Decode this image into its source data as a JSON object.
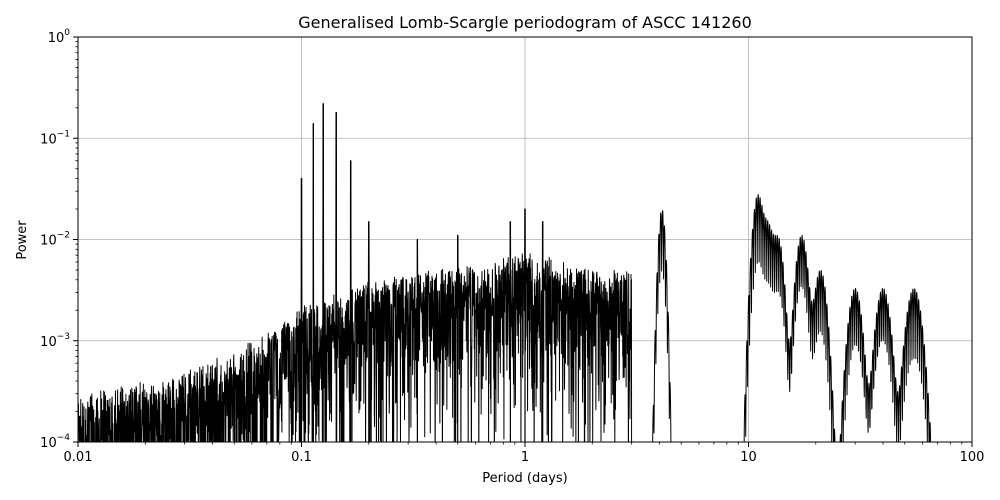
{
  "chart_data": {
    "type": "line",
    "title": "Generalised Lomb-Scargle periodogram of ASCC 141260",
    "xlabel": "Period (days)",
    "ylabel": "Power",
    "xscale": "log",
    "yscale": "log",
    "xlim": [
      0.01,
      100
    ],
    "ylim": [
      0.0001,
      1
    ],
    "grid": true,
    "line_color": "#000000",
    "grid_color": "#b0b0b0",
    "x_ticks": [
      {
        "value": 0.01,
        "label": "0.01"
      },
      {
        "value": 0.1,
        "label": "0.1"
      },
      {
        "value": 1,
        "label": "1"
      },
      {
        "value": 10,
        "label": "10"
      },
      {
        "value": 100,
        "label": "100"
      }
    ],
    "y_ticks": [
      {
        "value": 0.0001,
        "base": "10",
        "exp": "−4"
      },
      {
        "value": 0.001,
        "base": "10",
        "exp": "−3"
      },
      {
        "value": 0.01,
        "base": "10",
        "exp": "−2"
      },
      {
        "value": 0.1,
        "base": "10",
        "exp": "−1"
      },
      {
        "value": 1,
        "base": "10",
        "exp": "0"
      }
    ],
    "peaks": [
      {
        "x": 0.1,
        "y": 0.04
      },
      {
        "x": 0.113,
        "y": 0.14
      },
      {
        "x": 0.125,
        "y": 0.22
      },
      {
        "x": 0.143,
        "y": 0.18
      },
      {
        "x": 0.166,
        "y": 0.06
      },
      {
        "x": 0.2,
        "y": 0.015
      },
      {
        "x": 0.33,
        "y": 0.01
      },
      {
        "x": 0.5,
        "y": 0.011
      },
      {
        "x": 0.86,
        "y": 0.015
      },
      {
        "x": 1.0,
        "y": 0.02
      },
      {
        "x": 1.2,
        "y": 0.015
      },
      {
        "x": 4.1,
        "y": 0.02
      },
      {
        "x": 11.0,
        "y": 0.027
      },
      {
        "x": 12.2,
        "y": 0.013
      },
      {
        "x": 13.6,
        "y": 0.01
      },
      {
        "x": 17.3,
        "y": 0.011
      },
      {
        "x": 21.0,
        "y": 0.005
      },
      {
        "x": 30.0,
        "y": 0.0033
      },
      {
        "x": 40.0,
        "y": 0.0033
      },
      {
        "x": 55.0,
        "y": 0.0033
      }
    ],
    "envelope": [
      {
        "x": 0.01,
        "y": 0.0003
      },
      {
        "x": 0.02,
        "y": 0.0004
      },
      {
        "x": 0.03,
        "y": 0.0005
      },
      {
        "x": 0.05,
        "y": 0.0008
      },
      {
        "x": 0.07,
        "y": 0.0012
      },
      {
        "x": 0.09,
        "y": 0.002
      },
      {
        "x": 0.2,
        "y": 0.004
      },
      {
        "x": 0.4,
        "y": 0.005
      },
      {
        "x": 0.7,
        "y": 0.006
      },
      {
        "x": 1.0,
        "y": 0.008
      },
      {
        "x": 2.0,
        "y": 0.005
      },
      {
        "x": 3.0,
        "y": 0.005
      }
    ]
  }
}
